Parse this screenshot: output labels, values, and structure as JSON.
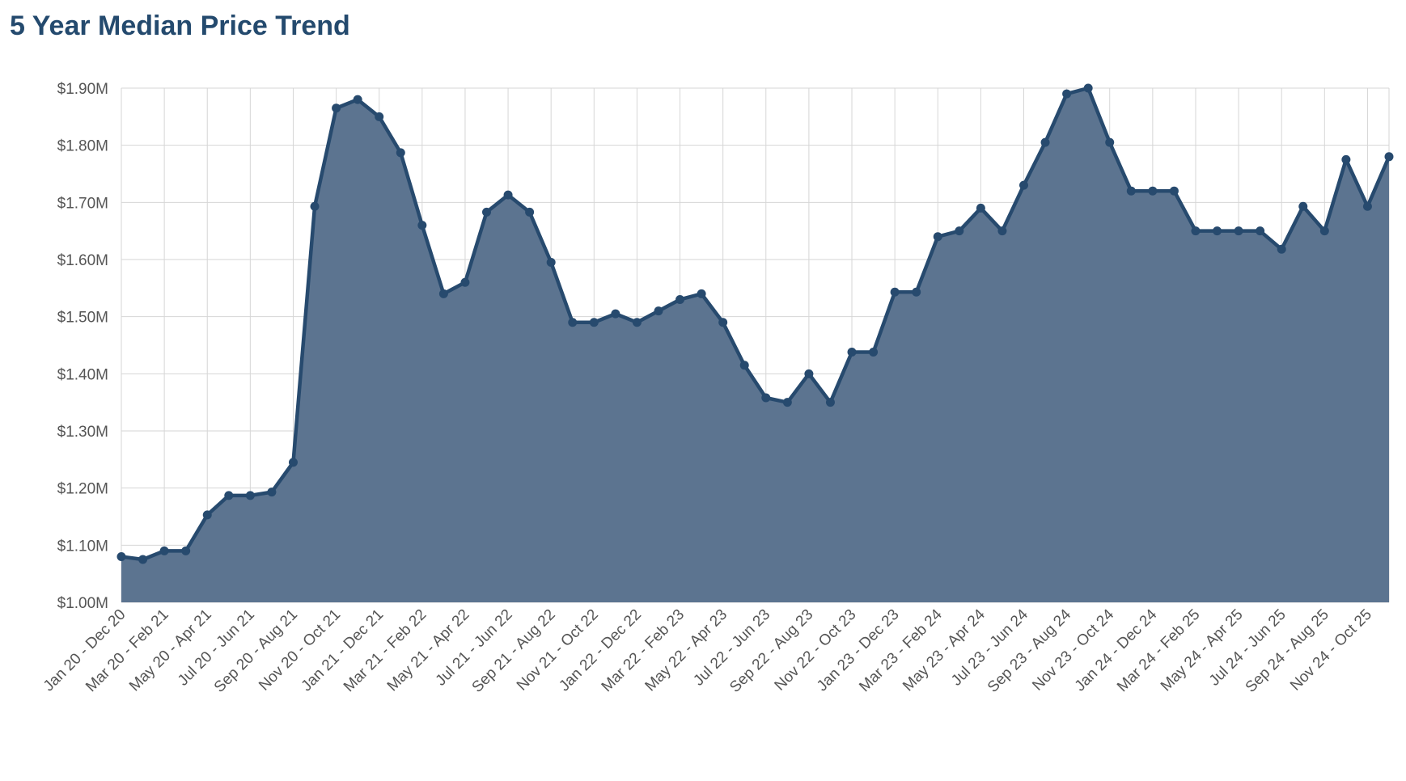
{
  "title": "5 Year Median Price Trend",
  "colors": {
    "title": "#244a6e",
    "line": "#274a6e",
    "area": "#5c7490",
    "grid": "#d6d6d6",
    "axis_text": "#555555"
  },
  "chart_data": {
    "type": "area",
    "title": "5 Year Median Price Trend",
    "xlabel": "",
    "ylabel": "",
    "ylim": [
      1000000,
      1900000
    ],
    "yticks": [
      1000000,
      1100000,
      1200000,
      1300000,
      1400000,
      1500000,
      1600000,
      1700000,
      1800000,
      1900000
    ],
    "ytick_labels": [
      "$1.00M",
      "$1.10M",
      "$1.20M",
      "$1.30M",
      "$1.40M",
      "$1.50M",
      "$1.60M",
      "$1.70M",
      "$1.80M",
      "$1.90M"
    ],
    "grid": true,
    "legend": "none",
    "x_tick_labels": [
      "Jan 20 - Dec 20",
      "Mar 20 - Feb 21",
      "May 20 - Apr 21",
      "Jul 20 - Jun 21",
      "Sep 20 - Aug 21",
      "Nov 20 - Oct 21",
      "Jan 21 - Dec 21",
      "Mar 21 - Feb 22",
      "May 21 - Apr 22",
      "Jul 21 - Jun 22",
      "Sep 21 - Aug 22",
      "Nov 21 - Oct 22",
      "Jan 22 - Dec 22",
      "Mar 22 - Feb 23",
      "May 22 - Apr 23",
      "Jul 22 - Jun 23",
      "Sep 22 - Aug 23",
      "Nov 22 - Oct 23",
      "Jan 23 - Dec 23",
      "Mar 23 - Feb 24",
      "May 23 - Apr 24",
      "Jul 23 - Jun 24",
      "Sep 23 - Aug 24",
      "Nov 23 - Oct 24",
      "Jan 24 - Dec 24",
      "Mar 24 - Feb 25",
      "May 24 - Apr 25",
      "Jul 24 - Jun 25",
      "Sep 24 - Aug 25",
      "Nov 24 - Oct 25"
    ],
    "series": [
      {
        "values": [
          1080000,
          1075000,
          1090000,
          1090000,
          1153000,
          1187000,
          1187000,
          1193000,
          1245000,
          1693000,
          1865000,
          1880000,
          1850000,
          1787000,
          1660000,
          1540000,
          1560000,
          1683000,
          1713000,
          1683000,
          1595000,
          1490000,
          1490000,
          1505000,
          1490000,
          1510000,
          1530000,
          1540000,
          1490000,
          1415000,
          1358000,
          1350000,
          1400000,
          1350000,
          1438000,
          1438000,
          1543000,
          1543000,
          1640000,
          1650000,
          1690000,
          1650000,
          1730000,
          1805000,
          1890000,
          1900000,
          1805000,
          1720000,
          1720000,
          1720000,
          1650000,
          1650000,
          1650000,
          1650000,
          1618000,
          1693000,
          1650000,
          1775000,
          1693000,
          1780000
        ]
      }
    ]
  }
}
